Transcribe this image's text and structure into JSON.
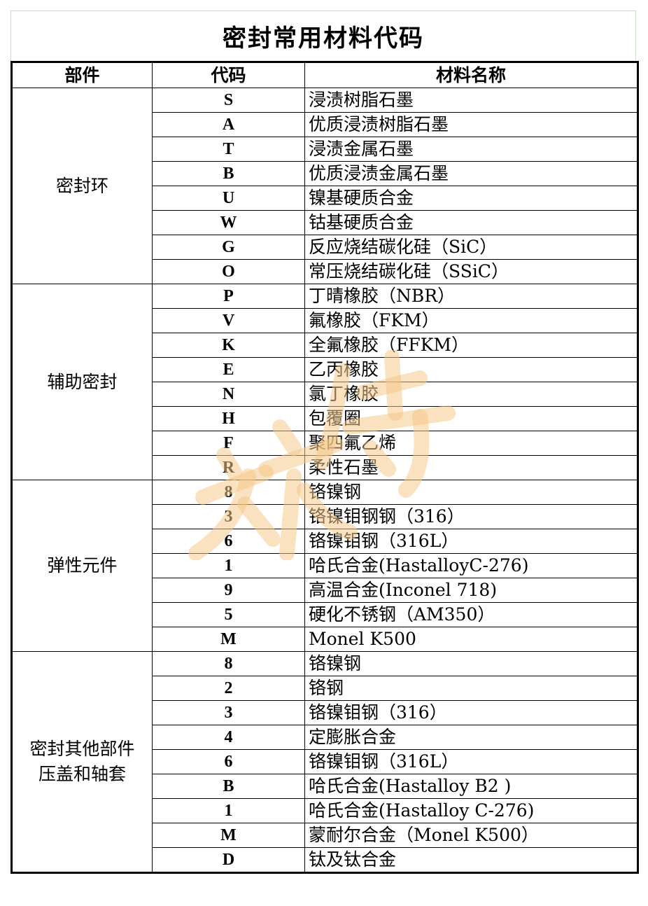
{
  "title": "密封常用材料代码",
  "headers": [
    "部件",
    "代码",
    "材料名称"
  ],
  "watermark": "旅侍",
  "groups": [
    {
      "part": [
        "密封环"
      ],
      "rows": [
        [
          "S",
          "浸渍树脂石墨"
        ],
        [
          "A",
          "优质浸渍树脂石墨"
        ],
        [
          "T",
          "浸渍金属石墨"
        ],
        [
          "B",
          "优质浸渍金属石墨"
        ],
        [
          "U",
          "镍基硬质合金"
        ],
        [
          "W",
          "钴基硬质合金"
        ],
        [
          "G",
          "反应烧结碳化硅（SiC）"
        ],
        [
          "O",
          "常压烧结碳化硅（SSiC）"
        ]
      ]
    },
    {
      "part": [
        "辅助密封"
      ],
      "rows": [
        [
          "P",
          "丁晴橡胶（NBR）"
        ],
        [
          "V",
          "氟橡胶（FKM）"
        ],
        [
          "K",
          "全氟橡胶（FFKM）"
        ],
        [
          "E",
          "乙丙橡胶"
        ],
        [
          "N",
          "氯丁橡胶"
        ],
        [
          "H",
          "包覆圈"
        ],
        [
          "F",
          "聚四氟乙烯"
        ],
        [
          "R",
          "柔性石墨"
        ]
      ]
    },
    {
      "part": [
        "弹性元件"
      ],
      "rows": [
        [
          "8",
          "铬镍钢"
        ],
        [
          "3",
          "铬镍钼钢钢（316）"
        ],
        [
          "6",
          "铬镍钼钢（316L）"
        ],
        [
          "1",
          "哈氏合金(HastalloyC-276)"
        ],
        [
          "9",
          "高温合金(Inconel 718)"
        ],
        [
          "5",
          "硬化不锈钢（AM350）"
        ],
        [
          "M",
          "Monel K500"
        ]
      ]
    },
    {
      "part": [
        "密封其他部件",
        "压盖和轴套"
      ],
      "rows": [
        [
          "8",
          "铬镍钢"
        ],
        [
          "2",
          "铬钢"
        ],
        [
          "3",
          "铬镍钼钢（316）"
        ],
        [
          "4",
          "定膨胀合金"
        ],
        [
          "6",
          "铬镍钼钢（316L）"
        ],
        [
          "B",
          "哈氏合金(Hastalloy B2 )"
        ],
        [
          "1",
          "哈氏合金(Hastalloy C-276)"
        ],
        [
          "M",
          "蒙耐尔合金（Monel K500）"
        ],
        [
          "D",
          "钛及钛合金"
        ]
      ]
    }
  ]
}
